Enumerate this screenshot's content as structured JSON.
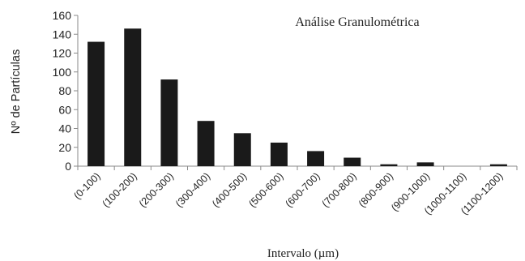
{
  "chart_data": {
    "type": "bar",
    "title": "Análise Granulométrica",
    "xlabel": "Intervalo (µm)",
    "ylabel": "Nº de Partículas",
    "categories": [
      "(0-100)",
      "(100-200)",
      "(200-300)",
      "(300-400)",
      "(400-500)",
      "(500-600)",
      "(600-700)",
      "(700-800)",
      "(800-900)",
      "(900-1000)",
      "(1000-1100)",
      "(1100-1200)"
    ],
    "values": [
      132,
      146,
      92,
      48,
      35,
      25,
      16,
      9,
      2,
      4,
      0,
      2
    ],
    "ylim": [
      0,
      160
    ],
    "yticks": [
      0,
      20,
      40,
      60,
      80,
      100,
      120,
      140,
      160
    ],
    "grid": false,
    "legend": "none",
    "bar_color": "#1a1a1a",
    "axis_color": "#8a8a8a"
  }
}
